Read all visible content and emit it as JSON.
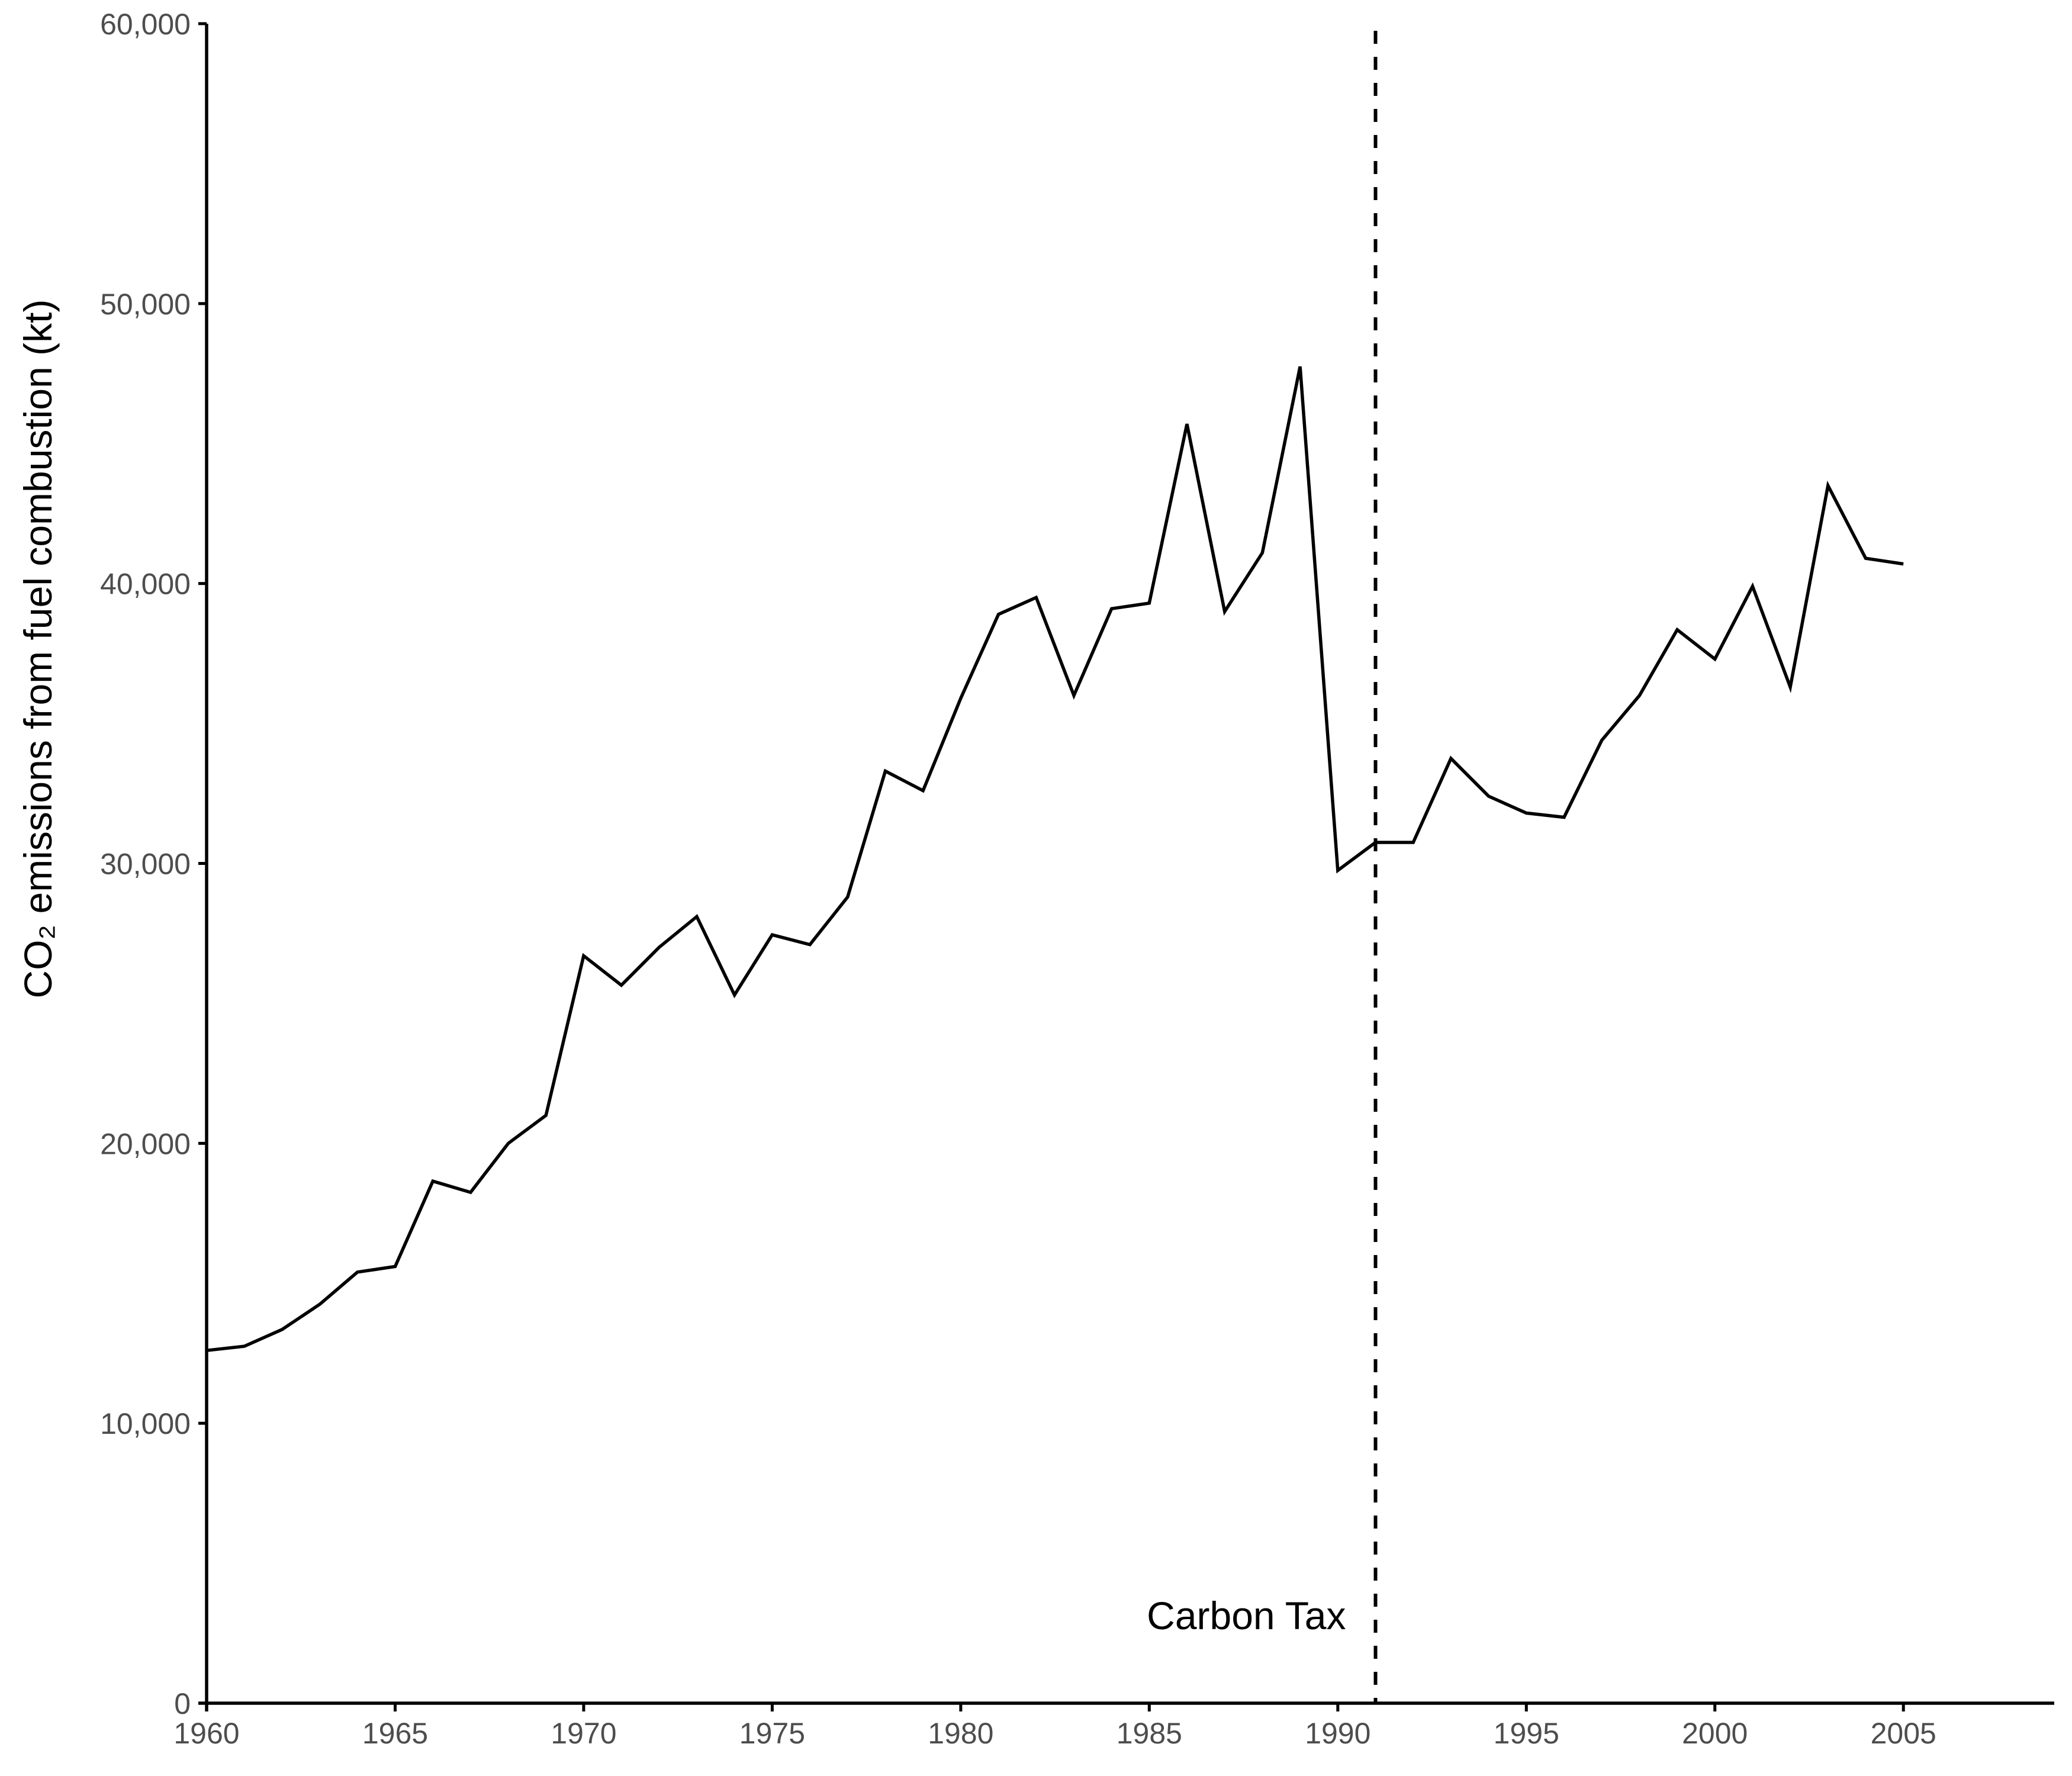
{
  "chart_data": {
    "type": "line",
    "title": "",
    "xlabel": "",
    "ylabel": "CO₂ emissions from fuel combustion (kt)",
    "xlim": [
      1960,
      2009
    ],
    "ylim": [
      0,
      60000
    ],
    "x_ticks": [
      1960,
      1965,
      1970,
      1975,
      1980,
      1985,
      1990,
      1995,
      2000,
      2005
    ],
    "x_tick_labels": [
      "1960",
      "1965",
      "1970",
      "1975",
      "1980",
      "1985",
      "1990",
      "1995",
      "2000",
      "2005"
    ],
    "y_ticks": [
      0,
      10000,
      20000,
      30000,
      40000,
      50000,
      60000
    ],
    "y_tick_labels": [
      "0",
      "10,000",
      "20,000",
      "30,000",
      "40,000",
      "50,000",
      "60,000"
    ],
    "grid": false,
    "legend": "none",
    "x": [
      1960,
      1961,
      1962,
      1963,
      1964,
      1965,
      1966,
      1967,
      1968,
      1969,
      1970,
      1971,
      1972,
      1973,
      1974,
      1975,
      1976,
      1977,
      1978,
      1979,
      1980,
      1981,
      1982,
      1983,
      1984,
      1985,
      1986,
      1987,
      1988,
      1989,
      1990,
      1991,
      1992,
      1993,
      1994,
      1995,
      1996,
      1997,
      1998,
      1999,
      2000,
      2001,
      2002,
      2003,
      2004,
      2005
    ],
    "series": [
      {
        "values": [
          12600,
          12750,
          13350,
          14250,
          15400,
          15600,
          18650,
          18250,
          20000,
          21000,
          26700,
          25650,
          27000,
          28100,
          25300,
          27450,
          27100,
          28800,
          33300,
          32600,
          35900,
          38900,
          39500,
          36000,
          39100,
          39300,
          45700,
          39000,
          41100,
          47750,
          29750,
          30750,
          30750,
          33750,
          32400,
          31800,
          31650,
          34400,
          36000,
          38350,
          37300,
          39900,
          36300,
          43500,
          40900,
          40700
        ],
        "color": "#000000"
      }
    ],
    "annotations": [
      {
        "type": "vline",
        "x": 1991,
        "label": "Carbon Tax",
        "style": "dashed",
        "color": "#000000"
      }
    ]
  }
}
